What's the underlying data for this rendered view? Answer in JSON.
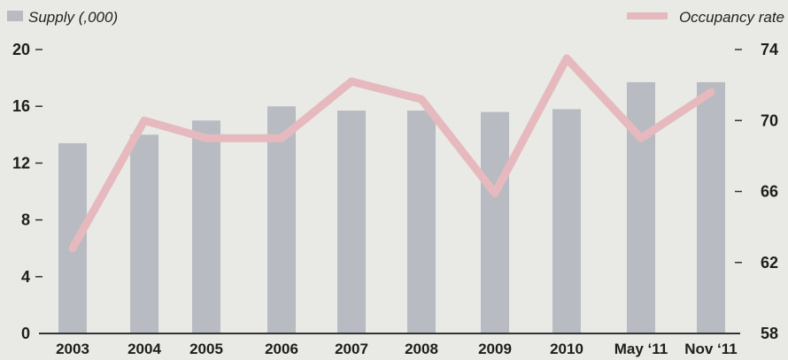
{
  "chart_data": {
    "type": "bar+line",
    "categories": [
      "2003",
      "2004",
      "2005",
      "2006",
      "2007",
      "2008",
      "2009",
      "2010",
      "May '11",
      "Nov '11"
    ],
    "series": [
      {
        "name": "Supply (,000)",
        "type": "bar",
        "axis": "left",
        "values": [
          13.4,
          14.0,
          15.0,
          16.0,
          15.7,
          15.7,
          15.6,
          15.8,
          17.7,
          17.7
        ]
      },
      {
        "name": "Occupancy rate",
        "type": "line",
        "axis": "right",
        "values": [
          62.8,
          70.0,
          69.0,
          69.0,
          72.2,
          71.2,
          65.9,
          73.5,
          69.0,
          71.6
        ]
      }
    ],
    "y_left": {
      "ticks": [
        "0",
        "4",
        "8",
        "12",
        "16",
        "20"
      ],
      "range": [
        0,
        20
      ]
    },
    "y_right": {
      "ticks": [
        "58",
        "62",
        "66",
        "70",
        "74"
      ],
      "range": [
        58,
        74
      ]
    },
    "x_ticks": [
      "2003",
      "2004",
      "2005",
      "2006",
      "2007",
      "2008",
      "2009",
      "2010",
      "May ‘11",
      "Nov ‘11"
    ],
    "legend": [
      {
        "label": "Supply (,000)",
        "position": "top-left"
      },
      {
        "label": "Occupancy rate",
        "position": "top-right"
      }
    ],
    "colors": {
      "bar": "#b8bbc1",
      "line": "#e6b9be",
      "axis": "#333333"
    },
    "grid": false
  }
}
